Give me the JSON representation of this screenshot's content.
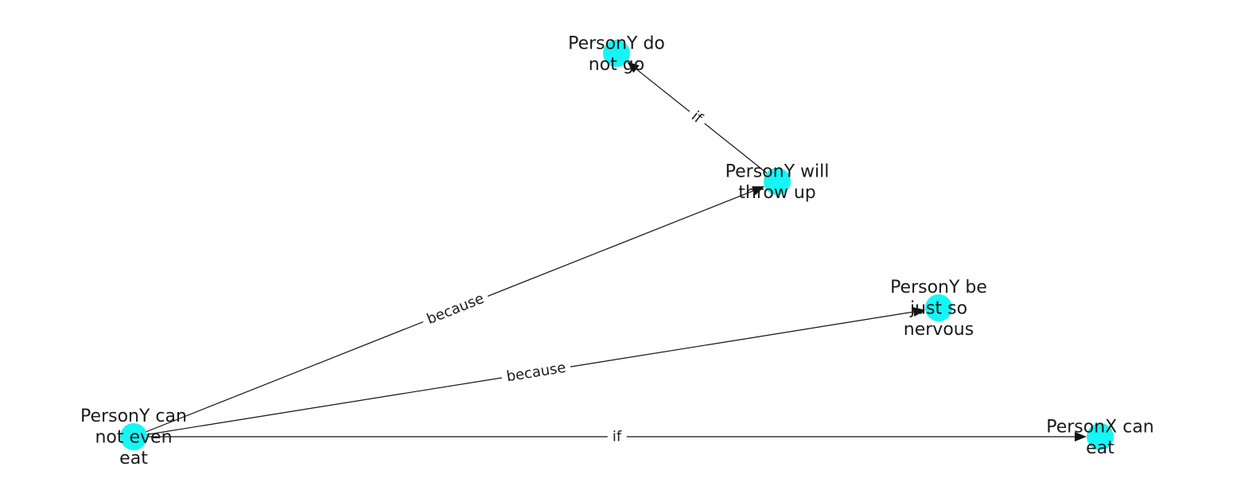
{
  "diagram": {
    "nodes": [
      {
        "id": "n_cannot_eat",
        "lines": [
          "PersonY can",
          "not even",
          "eat"
        ]
      },
      {
        "id": "n_throw_up",
        "lines": [
          "PersonY will",
          "throw up"
        ]
      },
      {
        "id": "n_do_not_go",
        "lines": [
          "PersonY do",
          "not go"
        ]
      },
      {
        "id": "n_nervous",
        "lines": [
          "PersonY be",
          "just so",
          "nervous"
        ]
      },
      {
        "id": "n_x_can_eat",
        "lines": [
          "PersonX can",
          "eat"
        ]
      }
    ],
    "edges": [
      {
        "from": "n_throw_up",
        "to": "n_do_not_go",
        "label": "if"
      },
      {
        "from": "n_cannot_eat",
        "to": "n_throw_up",
        "label": "because"
      },
      {
        "from": "n_cannot_eat",
        "to": "n_nervous",
        "label": "because"
      },
      {
        "from": "n_cannot_eat",
        "to": "n_x_can_eat",
        "label": "if"
      }
    ],
    "colors": {
      "node": "#16f5f5",
      "edge": "#111111",
      "text": "#1a1a1a"
    }
  }
}
